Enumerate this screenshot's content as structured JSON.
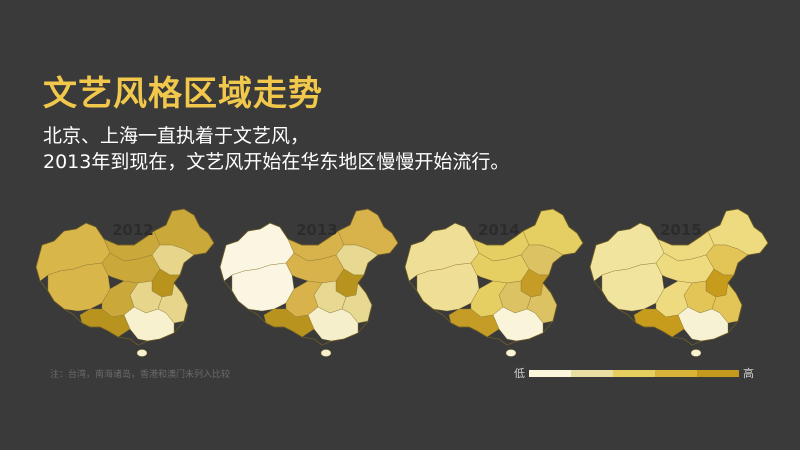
{
  "title": "文艺风格区域走势",
  "subtitle": {
    "line1": "北京、上海一直执着于文艺风，",
    "line2": "2013年到现在，文艺风开始在华东地区慢慢开始流行。"
  },
  "maps": [
    {
      "year": "2012",
      "base": "#caa83a",
      "west": "#d9b64a",
      "east": "#e6d58a",
      "hot": "#b8941f",
      "light": "#f8f1cf"
    },
    {
      "year": "2013",
      "base": "#d8b24b",
      "west": "#fbf6e2",
      "east": "#e8d992",
      "hot": "#b8941f",
      "light": "#f6efcb"
    },
    {
      "year": "2014",
      "base": "#e6cf62",
      "west": "#efdf96",
      "east": "#dcc262",
      "hot": "#c49c26",
      "light": "#f9f4da"
    },
    {
      "year": "2015",
      "base": "#eedb80",
      "west": "#f1e49e",
      "east": "#e2c556",
      "hot": "#c79b1c",
      "light": "#f8f2d4"
    }
  ],
  "note": "注：台湾，南海诸岛，香港和澳门未列入比较",
  "legend": {
    "low": "低",
    "high": "高",
    "colors": [
      "#fbf6dc",
      "#e9dfa2",
      "#e6cf5e",
      "#d9b337",
      "#c39a1d"
    ]
  }
}
